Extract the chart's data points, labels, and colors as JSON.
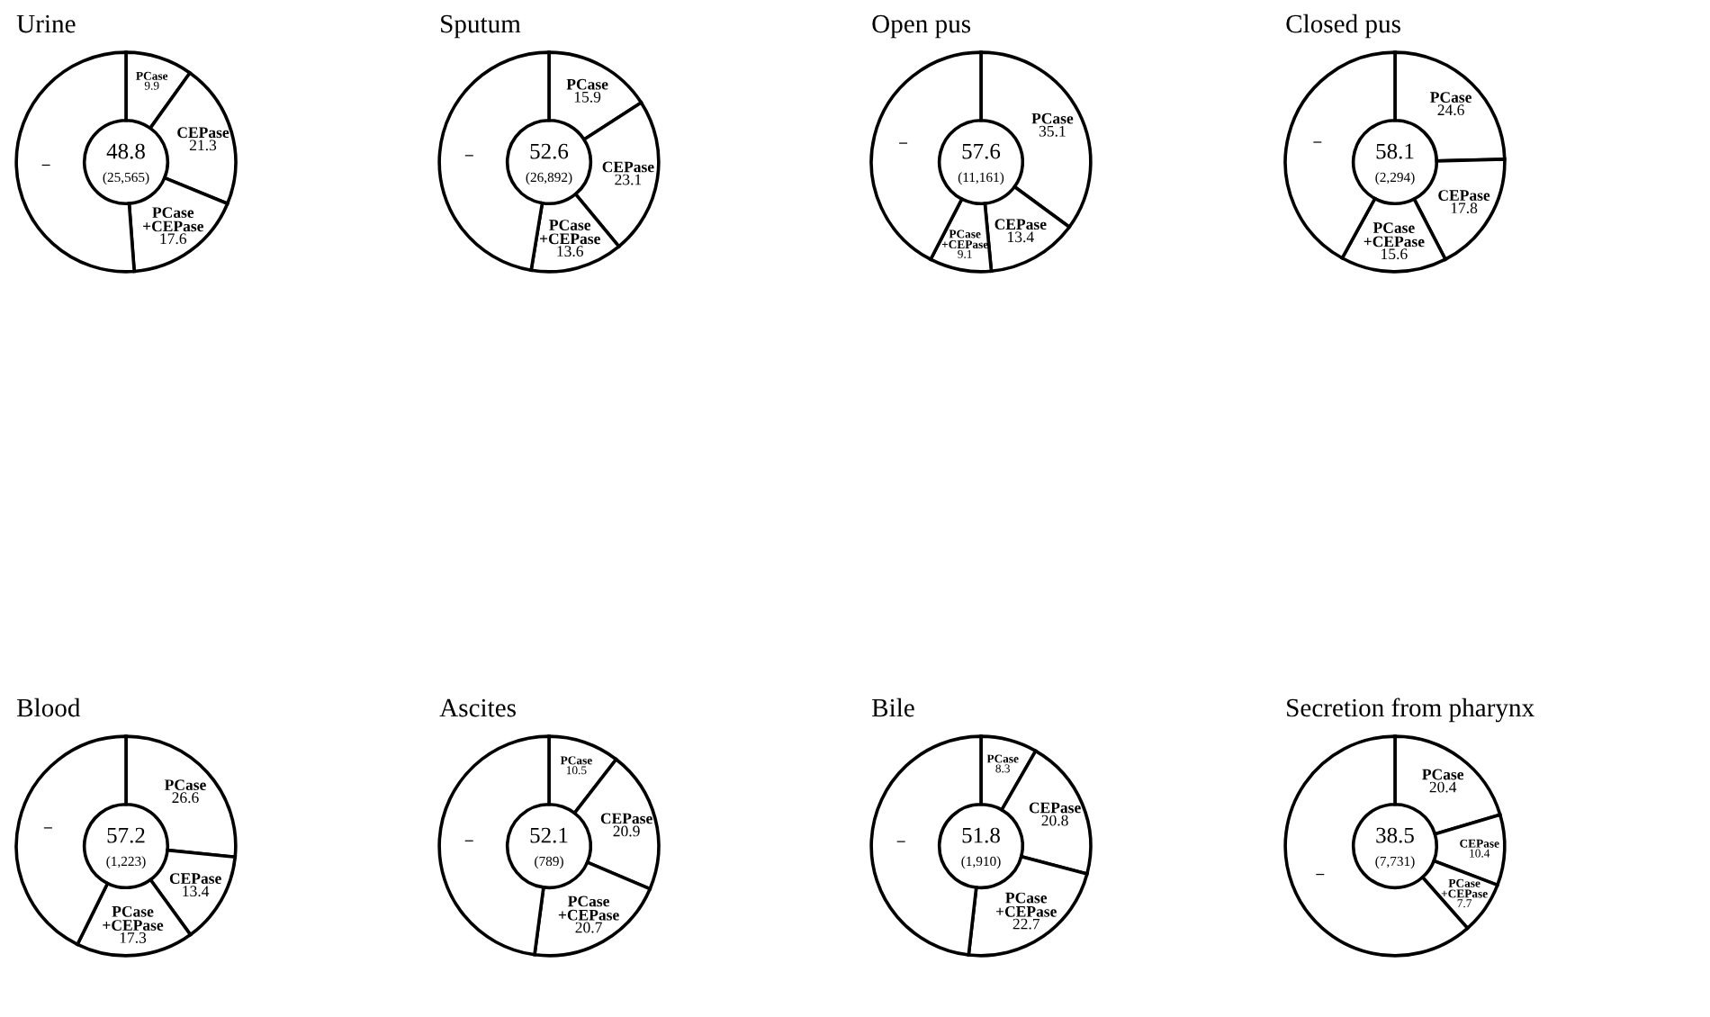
{
  "chart_data": [
    {
      "type": "donut",
      "title": "Urine",
      "categories": [
        "PCase",
        "CEPase",
        "PCase\n+CEPase",
        "–"
      ],
      "values": [
        9.9,
        21.3,
        17.6,
        51.2
      ],
      "value_labels": [
        "9.9",
        "21.3",
        "17.6",
        null
      ],
      "colors": [
        "#ffffff",
        "#ffffff",
        "#ffffff",
        "#ffffff"
      ],
      "annotations": [
        "48.8",
        "(25,565)"
      ]
    },
    {
      "type": "donut",
      "title": "Sputum",
      "categories": [
        "PCase",
        "CEPase",
        "PCase\n+CEPase",
        "–"
      ],
      "values": [
        15.9,
        23.1,
        13.6,
        47.4
      ],
      "value_labels": [
        "15.9",
        "23.1",
        "13.6",
        null
      ],
      "colors": [
        "#ffffff",
        "#ffffff",
        "#ffffff",
        "#ffffff"
      ],
      "annotations": [
        "52.6",
        "(26,892)"
      ]
    },
    {
      "type": "donut",
      "title": "Open pus",
      "categories": [
        "PCase",
        "CEPase",
        "PCase\n+CEPase",
        "–"
      ],
      "values": [
        35.1,
        13.4,
        9.1,
        42.4
      ],
      "value_labels": [
        "35.1",
        "13.4",
        "9.1",
        null
      ],
      "colors": [
        "#ffffff",
        "#ffffff",
        "#ffffff",
        "#ffffff"
      ],
      "annotations": [
        "57.6",
        "(11,161)"
      ]
    },
    {
      "type": "donut",
      "title": "Closed pus",
      "categories": [
        "PCase",
        "CEPase",
        "PCase\n+CEPase",
        "–"
      ],
      "values": [
        24.6,
        17.8,
        15.6,
        42.0
      ],
      "value_labels": [
        "24.6",
        "17.8",
        "15.6",
        null
      ],
      "colors": [
        "#ffffff",
        "#ffffff",
        "#ffffff",
        "#ffffff"
      ],
      "annotations": [
        "58.1",
        "(2,294)"
      ]
    },
    {
      "type": "donut",
      "title": "Blood",
      "categories": [
        "PCase",
        "CEPase",
        "PCase\n+CEPase",
        "–"
      ],
      "values": [
        26.6,
        13.4,
        17.3,
        42.7
      ],
      "value_labels": [
        "26.6",
        "13.4",
        "17.3",
        null
      ],
      "colors": [
        "#ffffff",
        "#ffffff",
        "#ffffff",
        "#ffffff"
      ],
      "annotations": [
        "57.2",
        "(1,223)"
      ]
    },
    {
      "type": "donut",
      "title": "Ascites",
      "categories": [
        "PCase",
        "CEPase",
        "PCase\n+CEPase",
        "–"
      ],
      "values": [
        10.5,
        20.9,
        20.7,
        47.9
      ],
      "value_labels": [
        "10.5",
        "20.9",
        "20.7",
        null
      ],
      "colors": [
        "#ffffff",
        "#ffffff",
        "#ffffff",
        "#ffffff"
      ],
      "annotations": [
        "52.1",
        "(789)"
      ]
    },
    {
      "type": "donut",
      "title": "Bile",
      "categories": [
        "PCase",
        "CEPase",
        "PCase\n+CEPase",
        "–"
      ],
      "values": [
        8.3,
        20.8,
        22.7,
        48.2
      ],
      "value_labels": [
        "8.3",
        "20.8",
        "22.7",
        null
      ],
      "colors": [
        "#ffffff",
        "#ffffff",
        "#ffffff",
        "#ffffff"
      ],
      "annotations": [
        "51.8",
        "(1,910)"
      ]
    },
    {
      "type": "donut",
      "title": "Secretion from pharynx",
      "categories": [
        "PCase",
        "CEPase",
        "PCase\n+CEPase",
        "–"
      ],
      "values": [
        20.4,
        10.4,
        7.7,
        61.5
      ],
      "value_labels": [
        "20.4",
        "10.4",
        "7.7",
        null
      ],
      "colors": [
        "#ffffff",
        "#ffffff",
        "#ffffff",
        "#ffffff"
      ],
      "annotations": [
        "38.5",
        "(7,731)"
      ]
    }
  ]
}
